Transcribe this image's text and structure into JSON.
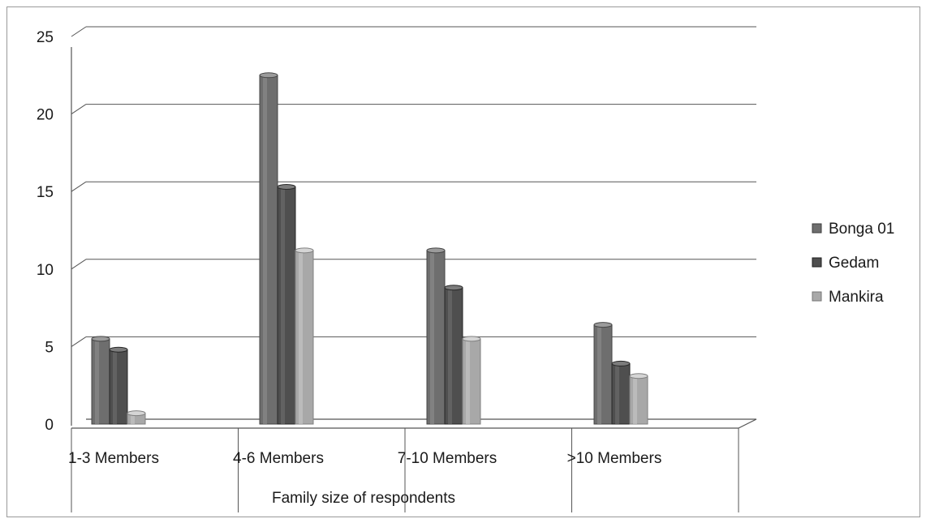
{
  "chart_data": {
    "type": "bar",
    "style": "3d-cylinder-clustered",
    "categories": [
      "1-3 Members",
      "4-6 Members",
      "7-10 Members",
      ">10 Members"
    ],
    "series": [
      {
        "name": "Bonga 01",
        "values": [
          5.5,
          22.5,
          11.2,
          6.4
        ],
        "color": "#6e6e6e"
      },
      {
        "name": "Gedam",
        "values": [
          4.8,
          15.3,
          8.8,
          3.9
        ],
        "color": "#4f4f4f"
      },
      {
        "name": "Mankira",
        "values": [
          0.7,
          11.2,
          5.5,
          3.1
        ],
        "color": "#a8a8a8"
      }
    ],
    "title": "",
    "xlabel": "Family size of respondents",
    "ylabel": "",
    "ylim": [
      0,
      25
    ],
    "yticks": [
      0,
      5,
      10,
      15,
      20,
      25
    ],
    "grid": true,
    "legend_position": "right"
  }
}
